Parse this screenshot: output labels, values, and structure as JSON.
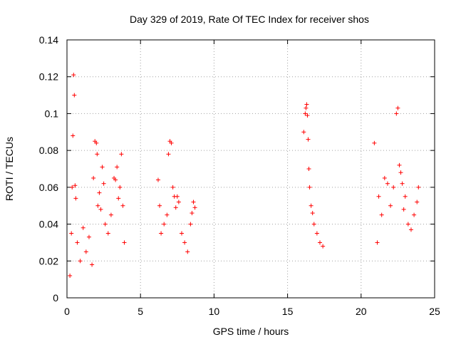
{
  "chart_data": {
    "type": "scatter",
    "title": "Day 329 of 2019, Rate Of TEC Index for receiver shos",
    "xlabel": "GPS time / hours",
    "ylabel": "ROTI / TECUs",
    "xlim": [
      0,
      25
    ],
    "ylim": [
      0,
      0.14
    ],
    "xticks": [
      "0",
      "5",
      "10",
      "15",
      "20",
      "25"
    ],
    "yticks": [
      "0",
      "0.02",
      "0.04",
      "0.06",
      "0.08",
      "0.1",
      "0.12",
      "0.14"
    ],
    "grid": true,
    "marker": "plus",
    "color": "#ff0000",
    "series": [
      {
        "points": [
          [
            0.2,
            0.012
          ],
          [
            0.3,
            0.035
          ],
          [
            0.35,
            0.06
          ],
          [
            0.4,
            0.088
          ],
          [
            0.45,
            0.121
          ],
          [
            0.5,
            0.11
          ],
          [
            0.55,
            0.061
          ],
          [
            0.6,
            0.054
          ],
          [
            0.7,
            0.03
          ],
          [
            0.9,
            0.02
          ],
          [
            1.1,
            0.038
          ],
          [
            1.3,
            0.025
          ],
          [
            1.5,
            0.033
          ],
          [
            1.7,
            0.018
          ],
          [
            1.8,
            0.065
          ],
          [
            1.9,
            0.085
          ],
          [
            2.0,
            0.084
          ],
          [
            2.05,
            0.078
          ],
          [
            2.1,
            0.05
          ],
          [
            2.2,
            0.057
          ],
          [
            2.3,
            0.048
          ],
          [
            2.4,
            0.071
          ],
          [
            2.5,
            0.062
          ],
          [
            2.6,
            0.04
          ],
          [
            2.8,
            0.035
          ],
          [
            3.0,
            0.045
          ],
          [
            3.2,
            0.065
          ],
          [
            3.3,
            0.064
          ],
          [
            3.4,
            0.071
          ],
          [
            3.5,
            0.054
          ],
          [
            3.6,
            0.06
          ],
          [
            3.7,
            0.078
          ],
          [
            3.8,
            0.05
          ],
          [
            3.9,
            0.03
          ],
          [
            6.2,
            0.064
          ],
          [
            6.3,
            0.05
          ],
          [
            6.4,
            0.035
          ],
          [
            6.6,
            0.04
          ],
          [
            6.8,
            0.045
          ],
          [
            6.9,
            0.078
          ],
          [
            7.0,
            0.085
          ],
          [
            7.1,
            0.084
          ],
          [
            7.2,
            0.06
          ],
          [
            7.3,
            0.055
          ],
          [
            7.4,
            0.049
          ],
          [
            7.5,
            0.055
          ],
          [
            7.6,
            0.052
          ],
          [
            7.8,
            0.035
          ],
          [
            8.0,
            0.03
          ],
          [
            8.2,
            0.025
          ],
          [
            8.4,
            0.04
          ],
          [
            8.5,
            0.046
          ],
          [
            8.6,
            0.052
          ],
          [
            8.7,
            0.049
          ],
          [
            16.1,
            0.09
          ],
          [
            16.2,
            0.1
          ],
          [
            16.25,
            0.103
          ],
          [
            16.3,
            0.105
          ],
          [
            16.35,
            0.099
          ],
          [
            16.4,
            0.086
          ],
          [
            16.45,
            0.07
          ],
          [
            16.5,
            0.06
          ],
          [
            16.6,
            0.05
          ],
          [
            16.7,
            0.046
          ],
          [
            16.8,
            0.04
          ],
          [
            17.0,
            0.035
          ],
          [
            17.2,
            0.03
          ],
          [
            17.4,
            0.028
          ],
          [
            20.9,
            0.084
          ],
          [
            21.1,
            0.03
          ],
          [
            21.2,
            0.055
          ],
          [
            21.4,
            0.045
          ],
          [
            21.6,
            0.065
          ],
          [
            21.8,
            0.062
          ],
          [
            22.0,
            0.05
          ],
          [
            22.2,
            0.06
          ],
          [
            22.4,
            0.1
          ],
          [
            22.5,
            0.103
          ],
          [
            22.6,
            0.072
          ],
          [
            22.7,
            0.068
          ],
          [
            22.8,
            0.062
          ],
          [
            22.9,
            0.048
          ],
          [
            23.0,
            0.055
          ],
          [
            23.2,
            0.04
          ],
          [
            23.4,
            0.037
          ],
          [
            23.6,
            0.045
          ],
          [
            23.8,
            0.052
          ],
          [
            23.9,
            0.06
          ]
        ]
      }
    ]
  }
}
